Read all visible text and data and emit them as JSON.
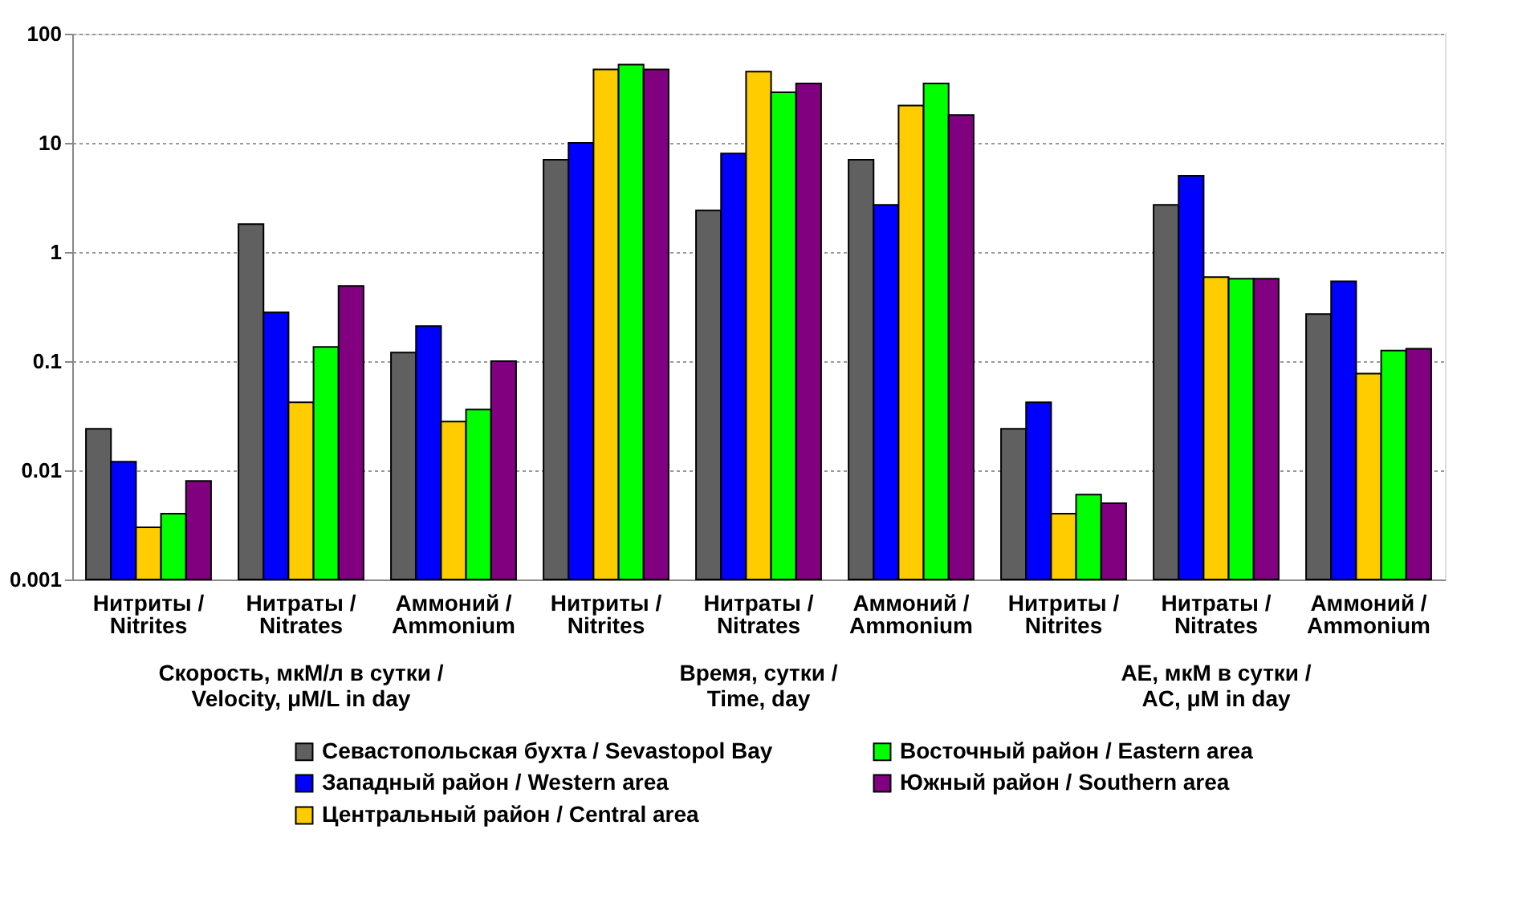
{
  "chart_data": {
    "type": "bar",
    "categories": [
      "Нитриты / Nitrites",
      "Нитраты / Nitrates",
      "Аммоний / Ammonium",
      "Нитриты / Nitrites",
      "Нитраты / Nitrates",
      "Аммоний / Ammonium",
      "Нитриты / Nitrites",
      "Нитраты / Nitrates",
      "Аммоний / Ammonium"
    ],
    "series": [
      {
        "name": "Севастопольская бухта / Sevastopol Bay",
        "color": "#606060",
        "values": [
          0.024,
          1.8,
          0.12,
          7,
          2.4,
          7,
          0.024,
          2.7,
          0.27
        ]
      },
      {
        "name": "Западный район / Western area",
        "color": "#0000ff",
        "values": [
          0.012,
          0.28,
          0.21,
          10,
          8,
          2.7,
          0.042,
          5,
          0.54
        ]
      },
      {
        "name": "Центральный район / Central area",
        "color": "#ffcc00",
        "values": [
          0.003,
          0.042,
          0.028,
          47,
          45,
          22,
          0.004,
          0.59,
          0.077
        ]
      },
      {
        "name": "Восточный район / Eastern area",
        "color": "#00ff00",
        "values": [
          0.004,
          0.135,
          0.036,
          52,
          29,
          35,
          0.006,
          0.57,
          0.125
        ]
      },
      {
        "name": "Южный район / Southern area",
        "color": "#800080",
        "values": [
          0.008,
          0.49,
          0.1,
          47,
          35,
          18,
          0.005,
          0.57,
          0.13
        ]
      }
    ],
    "annotations": [
      "Скорость, мкМ/л в сутки / Velocity, μM/L in day",
      "Время, сутки / Time, day",
      "АЕ, мкМ в сутки / AC, μM in day"
    ],
    "log": true,
    "ylim": [
      0.001,
      100
    ],
    "yticks": [
      0.001,
      0.01,
      0.1,
      1,
      10,
      100
    ],
    "grid": "y",
    "legend": "bottom"
  }
}
